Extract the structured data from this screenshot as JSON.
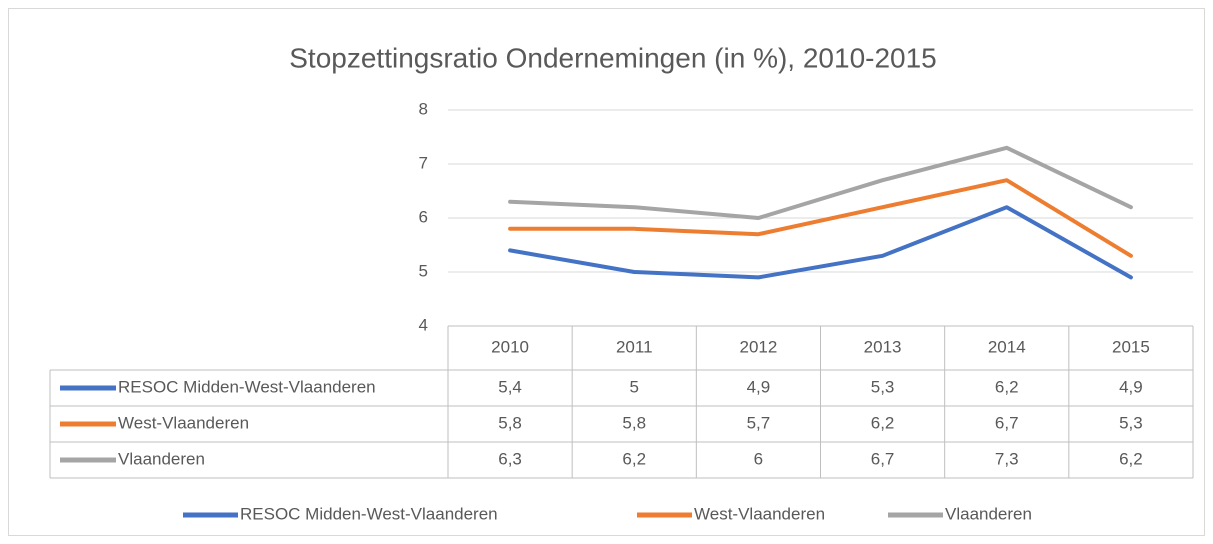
{
  "chart_data": {
    "type": "line",
    "title": "Stopzettingsratio Ondernemingen (in %), 2010-2015",
    "categories": [
      "2010",
      "2011",
      "2012",
      "2013",
      "2014",
      "2015"
    ],
    "series": [
      {
        "name": "RESOC Midden-West-Vlaanderen",
        "color": "#4472c4",
        "values": [
          5.4,
          5,
          4.9,
          5.3,
          6.2,
          4.9
        ],
        "value_labels": [
          "5,4",
          "5",
          "4,9",
          "5,3",
          "6,2",
          "4,9"
        ]
      },
      {
        "name": "West-Vlaanderen",
        "color": "#ed7d31",
        "values": [
          5.8,
          5.8,
          5.7,
          6.2,
          6.7,
          5.3
        ],
        "value_labels": [
          "5,8",
          "5,8",
          "5,7",
          "6,2",
          "6,7",
          "5,3"
        ]
      },
      {
        "name": "Vlaanderen",
        "color": "#a5a5a5",
        "values": [
          6.3,
          6.2,
          6,
          6.7,
          7.3,
          6.2
        ],
        "value_labels": [
          "6,3",
          "6,2",
          "6",
          "6,7",
          "7,3",
          "6,2"
        ]
      }
    ],
    "ylim": [
      4,
      8
    ],
    "yticks": [
      4,
      5,
      6,
      7,
      8
    ],
    "grid": true,
    "legend": "bottom"
  }
}
